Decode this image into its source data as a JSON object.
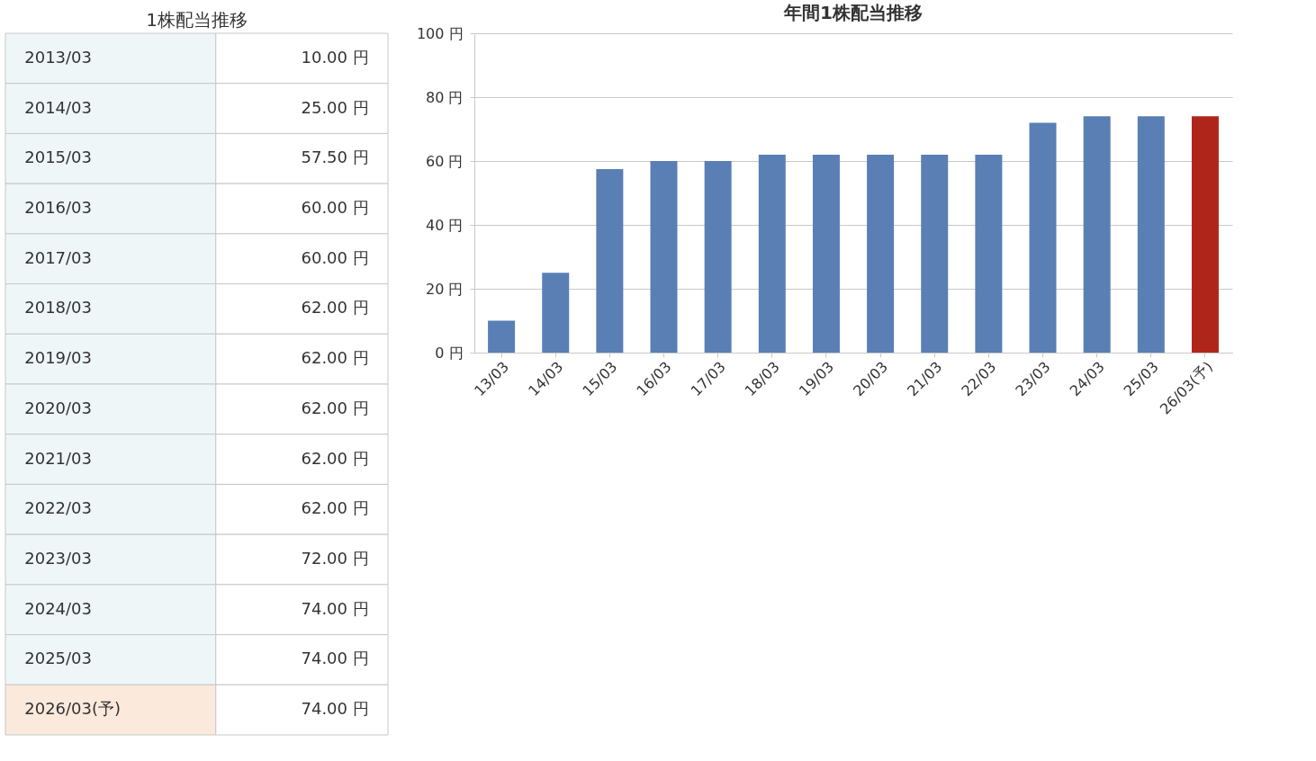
{
  "chart_data": [
    {
      "type": "other",
      "title": "1株配当推移",
      "annotations": [
        "2013/03",
        "10.00 円",
        "2014/03",
        "25.00 円",
        "2015/03",
        "57.50 円",
        "2016/03",
        "60.00 円",
        "2017/03",
        "60.00 円",
        "2018/03",
        "62.00 円",
        "2019/03",
        "62.00 円",
        "2020/03",
        "62.00 円",
        "2021/03",
        "62.00 円",
        "2022/03",
        "62.00 円",
        "2023/03",
        "72.00 円",
        "2024/03",
        "74.00 円",
        "2025/03",
        "74.00 円",
        "2026/03(予)",
        "74.00 円"
      ]
    },
    {
      "type": "bar",
      "title": "年間1株配当推移",
      "categories": [
        "13/03",
        "14/03",
        "15/03",
        "16/03",
        "17/03",
        "18/03",
        "19/03",
        "20/03",
        "21/03",
        "22/03",
        "23/03",
        "24/03",
        "25/03",
        "26/03(予)"
      ],
      "values": [
        10,
        25,
        57.5,
        60,
        60,
        62,
        62,
        62,
        62,
        62,
        72,
        74,
        74,
        74
      ],
      "colors": [
        "#5a7fb5",
        "#5a7fb5",
        "#5a7fb5",
        "#5a7fb5",
        "#5a7fb5",
        "#5a7fb5",
        "#5a7fb5",
        "#5a7fb5",
        "#5a7fb5",
        "#5a7fb5",
        "#5a7fb5",
        "#5a7fb5",
        "#5a7fb5",
        "#b0251a"
      ],
      "ylim": [
        0,
        100
      ],
      "yticks": [
        {
          "value": 0,
          "label": "0 円"
        },
        {
          "value": 20,
          "label": "20 円"
        },
        {
          "value": 40,
          "label": "40 円"
        },
        {
          "value": 60,
          "label": "60 円"
        },
        {
          "value": 80,
          "label": "80 円"
        },
        {
          "value": 100,
          "label": "100 円"
        }
      ],
      "grid": "y"
    }
  ]
}
